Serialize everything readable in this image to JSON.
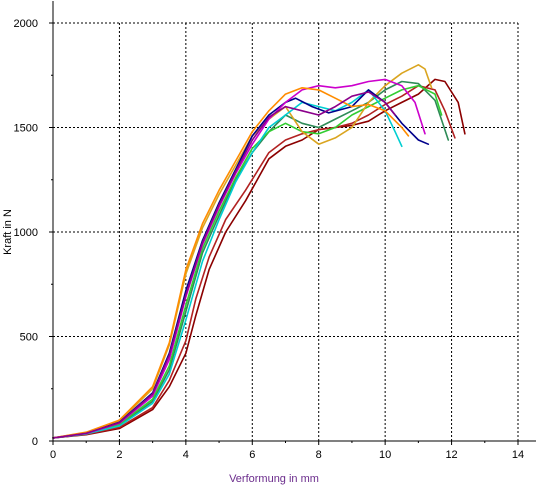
{
  "chart_data": {
    "type": "line",
    "title": "",
    "xlabel": "Verformung in mm",
    "ylabel": "Kraft in N",
    "xlim": [
      0,
      14
    ],
    "ylim": [
      0,
      2000
    ],
    "x_ticks": [
      "0",
      "2",
      "4",
      "6",
      "8",
      "10",
      "12",
      "14"
    ],
    "y_ticks": [
      "0",
      "500",
      "1000",
      "1500",
      "2000"
    ],
    "grid": true,
    "legend": "none",
    "colors": {
      "axis": "#000000",
      "grid": "#000000",
      "xlabel": "#6b2c8c"
    },
    "series": [
      {
        "color": "#8b0000",
        "x": [
          0,
          1,
          2,
          3,
          3.5,
          4,
          4.3,
          4.7,
          5.2,
          5.8,
          6.5,
          7,
          7.5,
          8,
          8.5,
          9,
          9.5,
          10,
          10.5,
          11,
          11.5,
          11.8,
          12.2,
          12.4
        ],
        "y": [
          15,
          30,
          60,
          150,
          260,
          420,
          600,
          820,
          1000,
          1150,
          1350,
          1410,
          1440,
          1490,
          1500,
          1510,
          1530,
          1580,
          1620,
          1660,
          1730,
          1720,
          1620,
          1470
        ]
      },
      {
        "color": "#b22222",
        "x": [
          0,
          1,
          2,
          3,
          3.5,
          4,
          4.3,
          4.7,
          5.2,
          5.8,
          6.5,
          7,
          7.5,
          8,
          8.5,
          9,
          9.5,
          10,
          10.5,
          11,
          11.5,
          11.8,
          12.1
        ],
        "y": [
          15,
          32,
          65,
          160,
          290,
          480,
          680,
          880,
          1060,
          1200,
          1380,
          1440,
          1470,
          1490,
          1500,
          1520,
          1560,
          1610,
          1650,
          1700,
          1680,
          1580,
          1450
        ]
      },
      {
        "color": "#2e8b57",
        "x": [
          0,
          1,
          2,
          3,
          3.5,
          4,
          4.5,
          5,
          5.5,
          6,
          6.5,
          7,
          7.5,
          8,
          8.5,
          9,
          9.5,
          10,
          10.5,
          11,
          11.5,
          11.9
        ],
        "y": [
          15,
          35,
          75,
          190,
          340,
          620,
          900,
          1080,
          1250,
          1380,
          1480,
          1560,
          1520,
          1500,
          1540,
          1580,
          1620,
          1680,
          1720,
          1710,
          1630,
          1440
        ]
      },
      {
        "color": "#32cd32",
        "x": [
          0,
          1,
          2,
          3,
          3.5,
          4,
          4.5,
          5,
          5.5,
          6,
          6.5,
          7,
          7.5,
          8,
          8.5,
          9,
          9.5,
          10,
          10.5,
          11,
          11.5,
          11.7
        ],
        "y": [
          15,
          35,
          80,
          200,
          360,
          650,
          920,
          1100,
          1260,
          1400,
          1480,
          1520,
          1480,
          1470,
          1500,
          1560,
          1600,
          1640,
          1680,
          1700,
          1660,
          1560
        ]
      },
      {
        "color": "#daa520",
        "x": [
          0,
          1,
          2,
          3,
          3.5,
          4,
          4.5,
          5,
          5.5,
          6,
          6.5,
          7,
          7.5,
          8,
          8.5,
          9,
          9.5,
          10,
          10.5,
          11,
          11.2,
          11.4
        ],
        "y": [
          15,
          40,
          95,
          250,
          460,
          800,
          1020,
          1180,
          1320,
          1460,
          1540,
          1600,
          1480,
          1420,
          1450,
          1500,
          1620,
          1700,
          1760,
          1800,
          1780,
          1690
        ]
      },
      {
        "color": "#00ced1",
        "x": [
          0,
          1,
          2,
          3,
          3.5,
          4,
          4.5,
          5,
          5.5,
          6,
          6.5,
          7,
          7.5,
          8,
          8.5,
          9,
          9.5,
          10,
          10.3,
          10.5
        ],
        "y": [
          15,
          34,
          72,
          180,
          320,
          580,
          860,
          1060,
          1240,
          1380,
          1500,
          1560,
          1620,
          1600,
          1580,
          1620,
          1680,
          1580,
          1480,
          1410
        ]
      },
      {
        "color": "#00008b",
        "x": [
          0,
          1,
          2,
          3,
          3.5,
          4,
          4.5,
          5,
          5.5,
          6,
          6.5,
          7,
          7.3,
          7.8,
          8.3,
          9,
          9.5,
          10,
          10.5,
          11,
          11.3
        ],
        "y": [
          15,
          38,
          90,
          230,
          420,
          720,
          960,
          1140,
          1300,
          1460,
          1560,
          1620,
          1640,
          1600,
          1570,
          1600,
          1680,
          1620,
          1520,
          1440,
          1420
        ]
      },
      {
        "color": "#cc00cc",
        "x": [
          0,
          1,
          2,
          3,
          3.5,
          4,
          4.5,
          5,
          5.5,
          6,
          6.5,
          7,
          7.5,
          8,
          8.5,
          9,
          9.5,
          10,
          10.5,
          10.9,
          11.2
        ],
        "y": [
          15,
          36,
          85,
          215,
          390,
          690,
          940,
          1120,
          1280,
          1420,
          1540,
          1620,
          1680,
          1700,
          1690,
          1700,
          1720,
          1730,
          1700,
          1620,
          1470
        ]
      },
      {
        "color": "#ff8c00",
        "x": [
          0,
          1,
          2,
          3,
          3.5,
          4,
          4.5,
          5,
          5.5,
          6,
          6.5,
          7,
          7.5,
          8,
          8.5,
          9,
          9.5,
          10,
          10.5,
          10.7
        ],
        "y": [
          15,
          42,
          100,
          260,
          470,
          820,
          1040,
          1200,
          1340,
          1480,
          1580,
          1660,
          1690,
          1680,
          1640,
          1600,
          1610,
          1580,
          1500,
          1460
        ]
      },
      {
        "color": "#8b008b",
        "x": [
          0,
          1,
          2,
          3,
          3.5,
          4,
          4.5,
          5,
          5.5,
          6,
          6.5,
          7,
          7.5,
          8,
          8.5,
          9,
          9.5,
          10,
          10.3
        ],
        "y": [
          15,
          37,
          88,
          225,
          410,
          700,
          950,
          1130,
          1290,
          1440,
          1550,
          1600,
          1580,
          1560,
          1600,
          1650,
          1670,
          1620,
          1560
        ]
      }
    ]
  }
}
